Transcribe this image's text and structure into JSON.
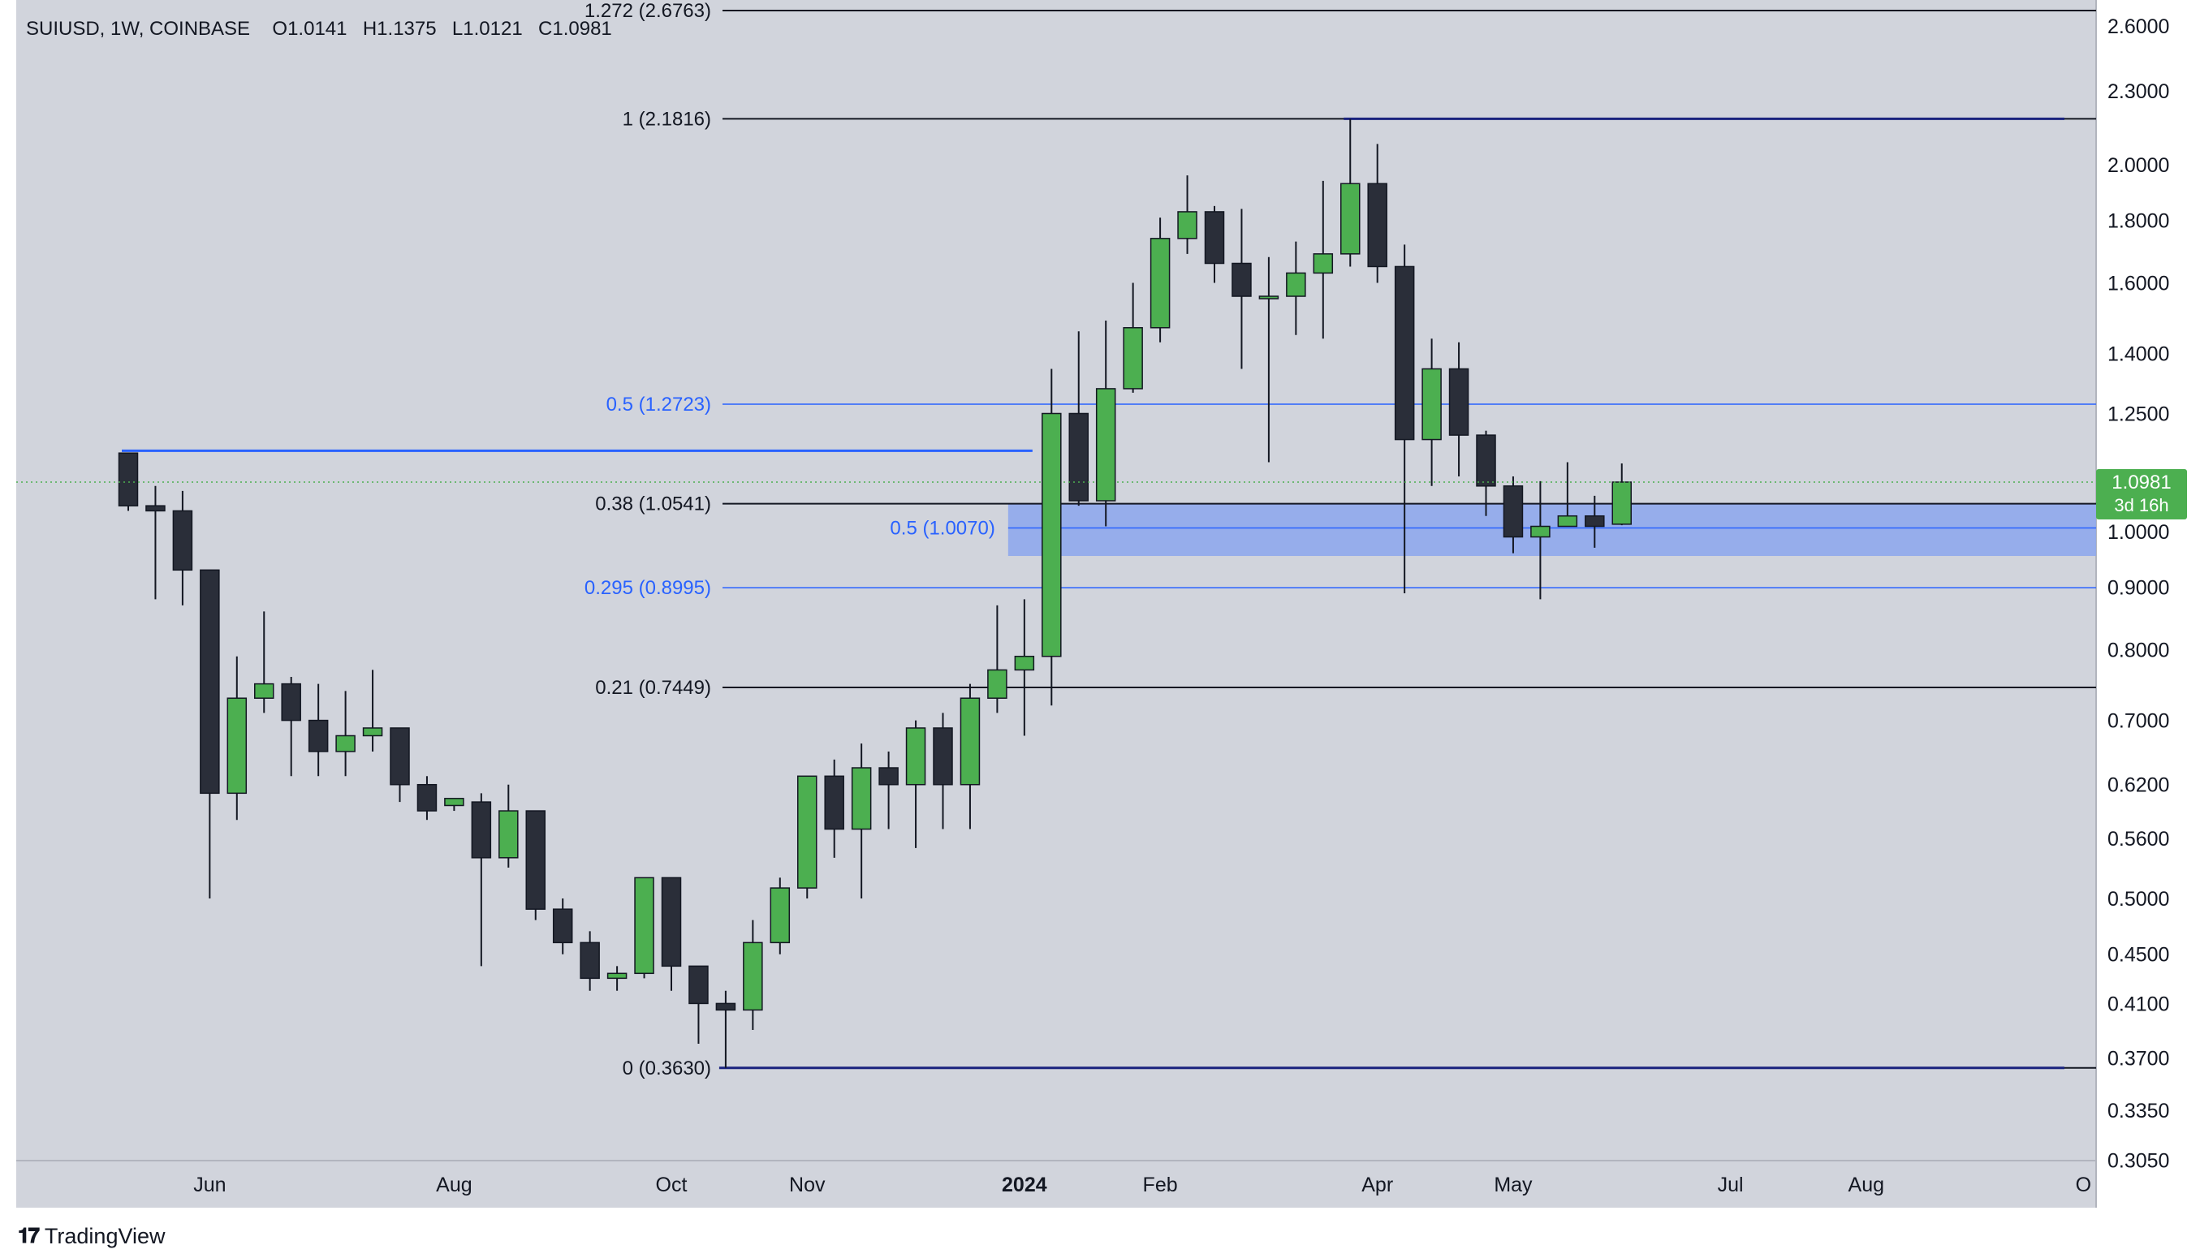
{
  "header": {
    "symbol": "SUIUSD, 1W, COINBASE",
    "open_label": "O",
    "open": "1.0141",
    "high_label": "H",
    "high": "1.1375",
    "low_label": "L",
    "low": "1.0121",
    "close_label": "C",
    "close": "1.0981"
  },
  "branding": {
    "name": "TradingView"
  },
  "colors": {
    "plot_bg": "#d1d4dc",
    "up": "#4caf50",
    "down": "#2a2e39",
    "candle_border": "#131722",
    "fib_black": "#131722",
    "fib_blue": "#2962ff",
    "zone": "#8fa8ec",
    "navy": "#1a237e",
    "price_badge": "#4caf50",
    "axis_text": "#131722"
  },
  "price_axis": {
    "ticks": [
      "2.6000",
      "2.3000",
      "2.0000",
      "1.8000",
      "1.6000",
      "1.4000",
      "1.2500",
      "1.0000",
      "0.9000",
      "0.8000",
      "0.7000",
      "0.6200",
      "0.5600",
      "0.5000",
      "0.4500",
      "0.4100",
      "0.3700",
      "0.3350",
      "0.3050"
    ],
    "scale": "log"
  },
  "current_price": {
    "value": "1.0981",
    "countdown": "3d 16h"
  },
  "time_axis": {
    "labels": [
      {
        "text": "Jun",
        "week": 3,
        "bold": false
      },
      {
        "text": "Aug",
        "week": 12,
        "bold": false
      },
      {
        "text": "Oct",
        "week": 20,
        "bold": false
      },
      {
        "text": "Nov",
        "week": 25,
        "bold": false
      },
      {
        "text": "2024",
        "week": 33,
        "bold": true
      },
      {
        "text": "Feb",
        "week": 38,
        "bold": false
      },
      {
        "text": "Apr",
        "week": 46,
        "bold": false
      },
      {
        "text": "May",
        "week": 51,
        "bold": false
      },
      {
        "text": "Jul",
        "week": 59,
        "bold": false
      },
      {
        "text": "Aug",
        "week": 64,
        "bold": false
      },
      {
        "text": "O",
        "week": 72,
        "bold": false
      }
    ]
  },
  "chart_data": {
    "type": "candlestick",
    "title": "SUIUSD, 1W, COINBASE",
    "scale": "log",
    "ylim": [
      0.3,
      2.75
    ],
    "candles": [
      {
        "o": 1.16,
        "h": 1.16,
        "l": 1.04,
        "c": 1.05
      },
      {
        "o": 1.05,
        "h": 1.09,
        "l": 0.88,
        "c": 1.04
      },
      {
        "o": 1.04,
        "h": 1.08,
        "l": 0.87,
        "c": 0.93
      },
      {
        "o": 0.93,
        "h": 0.93,
        "l": 0.5,
        "c": 0.61
      },
      {
        "o": 0.61,
        "h": 0.79,
        "l": 0.58,
        "c": 0.73
      },
      {
        "o": 0.73,
        "h": 0.86,
        "l": 0.71,
        "c": 0.75
      },
      {
        "o": 0.75,
        "h": 0.76,
        "l": 0.63,
        "c": 0.7
      },
      {
        "o": 0.7,
        "h": 0.75,
        "l": 0.63,
        "c": 0.66
      },
      {
        "o": 0.66,
        "h": 0.74,
        "l": 0.63,
        "c": 0.68
      },
      {
        "o": 0.68,
        "h": 0.77,
        "l": 0.66,
        "c": 0.69
      },
      {
        "o": 0.69,
        "h": 0.69,
        "l": 0.6,
        "c": 0.62
      },
      {
        "o": 0.62,
        "h": 0.63,
        "l": 0.58,
        "c": 0.59
      },
      {
        "o": 0.596,
        "h": 0.6,
        "l": 0.59,
        "c": 0.604
      },
      {
        "o": 0.6,
        "h": 0.61,
        "l": 0.44,
        "c": 0.54
      },
      {
        "o": 0.54,
        "h": 0.62,
        "l": 0.53,
        "c": 0.59
      },
      {
        "o": 0.59,
        "h": 0.59,
        "l": 0.48,
        "c": 0.49
      },
      {
        "o": 0.49,
        "h": 0.5,
        "l": 0.45,
        "c": 0.46
      },
      {
        "o": 0.46,
        "h": 0.47,
        "l": 0.42,
        "c": 0.43
      },
      {
        "o": 0.43,
        "h": 0.44,
        "l": 0.42,
        "c": 0.434
      },
      {
        "o": 0.434,
        "h": 0.52,
        "l": 0.43,
        "c": 0.52
      },
      {
        "o": 0.52,
        "h": 0.52,
        "l": 0.42,
        "c": 0.44
      },
      {
        "o": 0.44,
        "h": 0.44,
        "l": 0.38,
        "c": 0.41
      },
      {
        "o": 0.41,
        "h": 0.42,
        "l": 0.363,
        "c": 0.405
      },
      {
        "o": 0.405,
        "h": 0.48,
        "l": 0.39,
        "c": 0.46
      },
      {
        "o": 0.46,
        "h": 0.52,
        "l": 0.45,
        "c": 0.51
      },
      {
        "o": 0.51,
        "h": 0.63,
        "l": 0.5,
        "c": 0.63
      },
      {
        "o": 0.63,
        "h": 0.65,
        "l": 0.54,
        "c": 0.57
      },
      {
        "o": 0.57,
        "h": 0.67,
        "l": 0.5,
        "c": 0.64
      },
      {
        "o": 0.64,
        "h": 0.66,
        "l": 0.57,
        "c": 0.62
      },
      {
        "o": 0.62,
        "h": 0.7,
        "l": 0.55,
        "c": 0.69
      },
      {
        "o": 0.69,
        "h": 0.71,
        "l": 0.57,
        "c": 0.62
      },
      {
        "o": 0.62,
        "h": 0.75,
        "l": 0.57,
        "c": 0.73
      },
      {
        "o": 0.73,
        "h": 0.87,
        "l": 0.71,
        "c": 0.77
      },
      {
        "o": 0.77,
        "h": 0.88,
        "l": 0.68,
        "c": 0.79
      },
      {
        "o": 0.79,
        "h": 1.36,
        "l": 0.72,
        "c": 1.25
      },
      {
        "o": 1.25,
        "h": 1.46,
        "l": 1.05,
        "c": 1.06
      },
      {
        "o": 1.06,
        "h": 1.49,
        "l": 1.01,
        "c": 1.31
      },
      {
        "o": 1.31,
        "h": 1.6,
        "l": 1.3,
        "c": 1.47
      },
      {
        "o": 1.47,
        "h": 1.81,
        "l": 1.43,
        "c": 1.74
      },
      {
        "o": 1.74,
        "h": 1.96,
        "l": 1.69,
        "c": 1.83
      },
      {
        "o": 1.83,
        "h": 1.85,
        "l": 1.6,
        "c": 1.66
      },
      {
        "o": 1.66,
        "h": 1.84,
        "l": 1.36,
        "c": 1.56
      },
      {
        "o": 1.56,
        "h": 1.68,
        "l": 1.14,
        "c": 1.56
      },
      {
        "o": 1.56,
        "h": 1.73,
        "l": 1.45,
        "c": 1.63
      },
      {
        "o": 1.63,
        "h": 1.94,
        "l": 1.44,
        "c": 1.69
      },
      {
        "o": 1.69,
        "h": 2.18,
        "l": 1.65,
        "c": 1.93
      },
      {
        "o": 1.93,
        "h": 2.08,
        "l": 1.6,
        "c": 1.65
      },
      {
        "o": 1.65,
        "h": 1.72,
        "l": 0.89,
        "c": 1.19
      },
      {
        "o": 1.19,
        "h": 1.44,
        "l": 1.09,
        "c": 1.36
      },
      {
        "o": 1.36,
        "h": 1.43,
        "l": 1.11,
        "c": 1.2
      },
      {
        "o": 1.2,
        "h": 1.21,
        "l": 1.03,
        "c": 1.09
      },
      {
        "o": 1.09,
        "h": 1.11,
        "l": 0.96,
        "c": 0.99
      },
      {
        "o": 0.99,
        "h": 1.1,
        "l": 0.88,
        "c": 1.01
      },
      {
        "o": 1.01,
        "h": 1.14,
        "l": 1.01,
        "c": 1.03
      },
      {
        "o": 1.03,
        "h": 1.07,
        "l": 0.97,
        "c": 1.01
      },
      {
        "o": 1.0141,
        "h": 1.1375,
        "l": 1.0121,
        "c": 1.0981
      }
    ],
    "fib_levels": [
      {
        "ratio": "1.272",
        "price": 2.6763,
        "label": "1.272 (2.6763)",
        "style": "black"
      },
      {
        "ratio": "1",
        "price": 2.1816,
        "label": "1 (2.1816)",
        "style": "black"
      },
      {
        "ratio": "0.5",
        "price": 1.2723,
        "label": "0.5 (1.2723)",
        "style": "blue"
      },
      {
        "ratio": "0.38",
        "price": 1.0541,
        "label": "0.38 (1.0541)",
        "style": "black"
      },
      {
        "ratio": "0.295",
        "price": 0.8995,
        "label": "0.295 (0.8995)",
        "style": "blue"
      },
      {
        "ratio": "0.21",
        "price": 0.7449,
        "label": "0.21 (0.7449)",
        "style": "black"
      },
      {
        "ratio": "0",
        "price": 0.363,
        "label": "0 (0.3630)",
        "style": "black"
      }
    ],
    "zone": {
      "top": 1.0541,
      "bottom": 0.955,
      "mid_price": 1.007,
      "mid_label": "0.5 (1.0070)",
      "start_week": 33
    },
    "horizontal_rays": [
      {
        "price": 1.165,
        "from_week": 0,
        "to_week": 33,
        "color": "blue"
      },
      {
        "price": 2.1816,
        "from_week": 45,
        "to_week": 71,
        "color": "navy"
      },
      {
        "price": 0.363,
        "from_week": 22,
        "to_week": 71,
        "color": "navy"
      }
    ]
  }
}
